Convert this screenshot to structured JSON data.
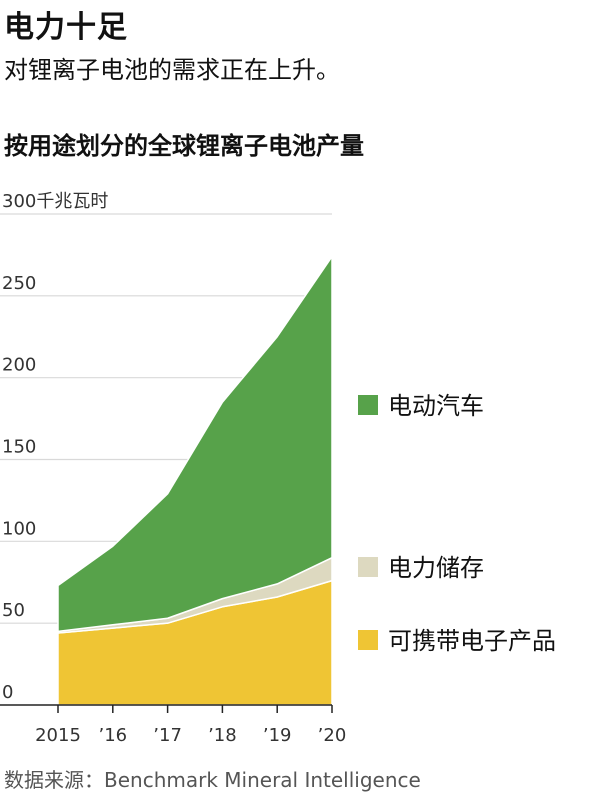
{
  "title": "电力十足",
  "subtitle": "对锂离子电池的需求正在上升。",
  "chart_heading": "按用途划分的全球锂离子电池产量",
  "source": "数据来源：Benchmark Mineral Intelligence",
  "chart_data": {
    "type": "area",
    "stacked": true,
    "x": [
      2015,
      2016,
      2017,
      2018,
      2019,
      2020
    ],
    "x_tick_labels": [
      "2015",
      "’16",
      "’17",
      "’18",
      "’19",
      "’20"
    ],
    "y_unit_label": "300千兆瓦时",
    "y_ticks": [
      0,
      50,
      100,
      150,
      200,
      250,
      300
    ],
    "y_tick_labels": [
      "0",
      "50",
      "100",
      "150",
      "200",
      "250",
      "300"
    ],
    "ylim": [
      0,
      300
    ],
    "grid": true,
    "legend_position": "right",
    "series": [
      {
        "name": "可携带电子产品",
        "color": "#efc534",
        "values": [
          44,
          47,
          50,
          60,
          66,
          76
        ]
      },
      {
        "name": "电力储存",
        "color": "#ddd9c0",
        "values": [
          1,
          2,
          3,
          5,
          8,
          14
        ]
      },
      {
        "name": "电动汽车",
        "color": "#57a24a",
        "values": [
          28,
          48,
          76,
          120,
          151,
          184
        ]
      }
    ],
    "legend_order": [
      2,
      1,
      0
    ]
  }
}
